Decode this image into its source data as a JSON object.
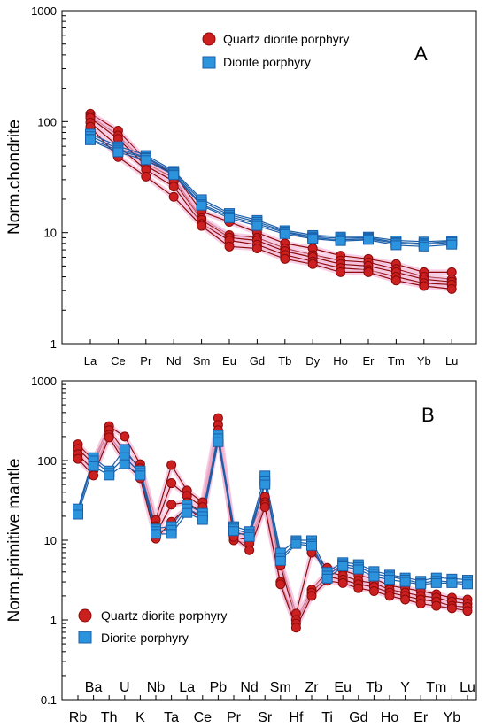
{
  "chart_data": [
    {
      "panel_label": "A",
      "type": "line",
      "ylabel": "Norm.chondrite",
      "yscale": "log",
      "ylim": [
        1,
        1000
      ],
      "ytick_labels": [
        "1",
        "10",
        "100",
        "1000"
      ],
      "categories": [
        "La",
        "Ce",
        "Pr",
        "Nd",
        "Sm",
        "Eu",
        "Gd",
        "Tb",
        "Dy",
        "Ho",
        "Er",
        "Tm",
        "Yb",
        "Lu"
      ],
      "legend": {
        "placement": "top-right",
        "entries": [
          "Quartz diorite porphyry",
          "Diorite porphyry"
        ]
      },
      "colors": {
        "quartz": "#cc1f1f",
        "quartz_edge": "#8b0a0a",
        "diorite": "#2b94dd",
        "diorite_edge": "#1b5ea8",
        "halo": "#f4b9d8"
      },
      "series": [
        {
          "group": "quartz",
          "values": [
            118,
            83,
            45,
            34,
            15.5,
            12.5,
            10.0,
            8.0,
            7.2,
            6.2,
            5.8,
            5.2,
            4.4,
            4.4
          ]
        },
        {
          "group": "quartz",
          "values": [
            112,
            75,
            42,
            31,
            13.5,
            9.5,
            9.0,
            7.2,
            6.3,
            5.6,
            5.4,
            4.7,
            4.0,
            3.8
          ]
        },
        {
          "group": "quartz",
          "values": [
            108,
            70,
            40,
            29,
            13.0,
            9.0,
            8.5,
            6.8,
            6.0,
            5.2,
            5.0,
            4.4,
            3.8,
            3.6
          ]
        },
        {
          "group": "quartz",
          "values": [
            98,
            60,
            37,
            26,
            12.0,
            8.5,
            7.8,
            6.3,
            5.5,
            4.8,
            4.6,
            4.0,
            3.5,
            3.4
          ]
        },
        {
          "group": "quartz",
          "values": [
            90,
            48,
            32,
            21,
            11.5,
            7.5,
            7.2,
            5.8,
            5.2,
            4.4,
            4.4,
            3.7,
            3.3,
            3.1
          ]
        },
        {
          "group": "diorite",
          "values": [
            78,
            60,
            50,
            36,
            20,
            15.0,
            13.0,
            10.5,
            9.5,
            9.2,
            9.2,
            8.5,
            8.3,
            8.5
          ]
        },
        {
          "group": "diorite",
          "values": [
            74,
            57,
            48,
            35,
            19,
            14.5,
            12.5,
            10.2,
            9.2,
            8.9,
            9.0,
            8.2,
            8.0,
            8.4
          ]
        },
        {
          "group": "diorite",
          "values": [
            70,
            55,
            47,
            34,
            18,
            14.0,
            12.0,
            10.0,
            9.0,
            8.6,
            8.8,
            8.0,
            7.8,
            8.2
          ]
        },
        {
          "group": "diorite",
          "values": [
            68,
            53,
            45,
            33,
            17.5,
            13.5,
            11.5,
            9.7,
            8.8,
            8.4,
            8.6,
            7.7,
            7.5,
            7.8
          ]
        }
      ]
    },
    {
      "panel_label": "B",
      "type": "line",
      "ylabel": "Norm.primitive mantle",
      "yscale": "log",
      "ylim": [
        0.1,
        1000
      ],
      "ytick_labels": [
        "0.1",
        "1",
        "10",
        "100",
        "1000"
      ],
      "categories": [
        "Rb",
        "Ba",
        "Th",
        "U",
        "K",
        "Nb",
        "Ta",
        "La",
        "Ce",
        "Pb",
        "Pr",
        "Nd",
        "Sr",
        "Sm",
        "Hf",
        "Zr",
        "Ti",
        "Eu",
        "Gd",
        "Tb",
        "Ho",
        "Y",
        "Er",
        "Tm",
        "Yb",
        "Lu"
      ],
      "legend": {
        "placement": "bottom-left",
        "entries": [
          "Quartz diorite porphyry",
          "Diorite porphyry"
        ]
      },
      "series": [
        {
          "group": "quartz",
          "values": [
            160,
            100,
            270,
            200,
            90,
            18,
            88,
            42,
            30,
            340,
            12,
            12,
            35,
            5.5,
            1.2,
            7.0,
            4.5,
            4.2,
            3.6,
            3.3,
            2.7,
            2.5,
            2.3,
            2.1,
            1.9,
            1.8
          ]
        },
        {
          "group": "quartz",
          "values": [
            140,
            90,
            240,
            130,
            80,
            15,
            52,
            36,
            26,
            280,
            11,
            10,
            30,
            4.8,
            1.0,
            2.4,
            4.0,
            3.6,
            3.1,
            2.9,
            2.4,
            2.2,
            2.0,
            1.9,
            1.7,
            1.6
          ]
        },
        {
          "group": "quartz",
          "values": [
            120,
            75,
            210,
            110,
            70,
            12,
            28,
            30,
            22,
            240,
            10,
            9,
            28,
            3.0,
            0.9,
            2.2,
            3.5,
            3.2,
            2.8,
            2.6,
            2.2,
            2.0,
            1.8,
            1.7,
            1.5,
            1.45
          ]
        },
        {
          "group": "quartz",
          "values": [
            105,
            65,
            195,
            95,
            60,
            10.5,
            17,
            26,
            18,
            210,
            11,
            7.5,
            26,
            2.8,
            0.8,
            2.0,
            3.1,
            2.9,
            2.5,
            2.3,
            2.0,
            1.8,
            1.6,
            1.5,
            1.4,
            1.3
          ]
        },
        {
          "group": "diorite",
          "values": [
            25,
            110,
            75,
            140,
            75,
            14,
            15,
            28,
            22,
            210,
            15,
            13,
            65,
            7.0,
            10,
            10,
            4.0,
            5.3,
            5.0,
            4.1,
            3.7,
            3.4,
            3.1,
            3.4,
            3.3,
            3.2
          ]
        },
        {
          "group": "diorite",
          "values": [
            23,
            100,
            70,
            110,
            70,
            13,
            13.5,
            25,
            20,
            190,
            14,
            12,
            55,
            6.0,
            9.5,
            9.0,
            3.6,
            5.0,
            4.6,
            3.8,
            3.5,
            3.2,
            2.9,
            3.1,
            3.0,
            3.0
          ]
        },
        {
          "group": "diorite",
          "values": [
            21,
            85,
            65,
            90,
            65,
            12,
            12,
            22,
            18,
            170,
            13,
            11,
            50,
            5.5,
            9.0,
            8.5,
            3.3,
            4.7,
            4.3,
            3.5,
            3.2,
            3.0,
            2.8,
            2.9,
            2.9,
            2.8
          ]
        }
      ]
    }
  ]
}
